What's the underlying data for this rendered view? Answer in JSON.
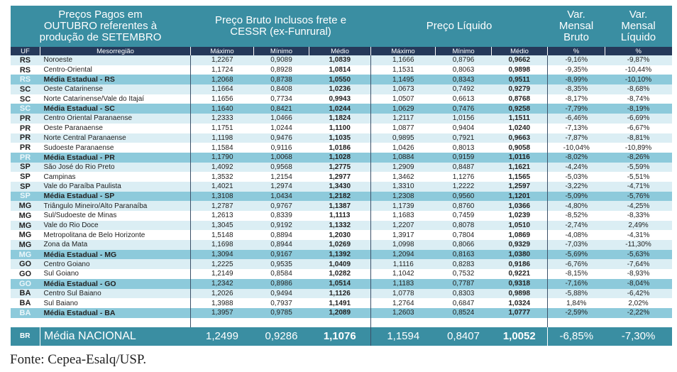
{
  "header": {
    "title": "Preços Pagos em OUTUBRO referentes à produção de SETEMBRO",
    "bruto": "Preço Bruto Inclusos frete e CESSR (ex-Funrural)",
    "liquido": "Preço Líquido",
    "var_bruto": "Var. Mensal Bruto",
    "var_liquido": "Var. Mensal Líquido"
  },
  "subheader": [
    "UF",
    "Mesorregião",
    "Máximo",
    "Mínimo",
    "Médio",
    "Máximo",
    "Mínimo",
    "Médio",
    "%",
    "%"
  ],
  "colors": {
    "header": "#3a8ea2",
    "subheader": "#25395a",
    "state_row": "#8dcadb",
    "light_row": "#dbeef4"
  },
  "rows": [
    {
      "type": "region",
      "uf": "RS",
      "region": "Noroeste",
      "bruto": [
        "1,2267",
        "0,9089",
        "1,0839"
      ],
      "liquido": [
        "1,1666",
        "0,8796",
        "0,9662"
      ],
      "var_bruto": "-9,16%",
      "var_liquido": "-9,87%"
    },
    {
      "type": "region",
      "uf": "RS",
      "region": "Centro-Oriental",
      "bruto": [
        "1,1724",
        "0,8928",
        "1,0814"
      ],
      "liquido": [
        "1,1531",
        "0,8063",
        "0,9898"
      ],
      "var_bruto": "-9,35%",
      "var_liquido": "-10,44%"
    },
    {
      "type": "state",
      "uf": "RS",
      "region": "Média Estadual - RS",
      "bruto": [
        "1,2068",
        "0,8738",
        "1,0550"
      ],
      "liquido": [
        "1,1495",
        "0,8343",
        "0,9511"
      ],
      "var_bruto": "-8,99%",
      "var_liquido": "-10,10%"
    },
    {
      "type": "region",
      "uf": "SC",
      "region": "Oeste Catarinense",
      "bruto": [
        "1,1664",
        "0,8408",
        "1,0236"
      ],
      "liquido": [
        "1,0673",
        "0,7492",
        "0,9279"
      ],
      "var_bruto": "-8,35%",
      "var_liquido": "-8,68%"
    },
    {
      "type": "region",
      "uf": "SC",
      "region": "Norte Catarinense/Vale do Itajaí",
      "bruto": [
        "1,1656",
        "0,7734",
        "0,9943"
      ],
      "liquido": [
        "1,0507",
        "0,6613",
        "0,8768"
      ],
      "var_bruto": "-8,17%",
      "var_liquido": "-8,74%"
    },
    {
      "type": "state",
      "uf": "SC",
      "region": "Média Estadual - SC",
      "bruto": [
        "1,1640",
        "0,8421",
        "1,0244"
      ],
      "liquido": [
        "1,0629",
        "0,7476",
        "0,9258"
      ],
      "var_bruto": "-7,79%",
      "var_liquido": "-8,19%"
    },
    {
      "type": "region",
      "uf": "PR",
      "region": "Centro Oriental Paranaense",
      "bruto": [
        "1,2333",
        "1,0466",
        "1,1824"
      ],
      "liquido": [
        "1,2117",
        "1,0156",
        "1,1511"
      ],
      "var_bruto": "-6,46%",
      "var_liquido": "-6,69%"
    },
    {
      "type": "region",
      "uf": "PR",
      "region": "Oeste Paranaense",
      "bruto": [
        "1,1751",
        "1,0244",
        "1,1100"
      ],
      "liquido": [
        "1,0877",
        "0,9404",
        "1,0240"
      ],
      "var_bruto": "-7,13%",
      "var_liquido": "-6,67%"
    },
    {
      "type": "region",
      "uf": "PR",
      "region": "Norte Central Paranaense",
      "bruto": [
        "1,1198",
        "0,9476",
        "1,1035"
      ],
      "liquido": [
        "0,9895",
        "0,7921",
        "0,9663"
      ],
      "var_bruto": "-7,87%",
      "var_liquido": "-8,81%"
    },
    {
      "type": "region",
      "uf": "PR",
      "region": "Sudoeste Paranaense",
      "bruto": [
        "1,1584",
        "0,9116",
        "1,0186"
      ],
      "liquido": [
        "1,0426",
        "0,8013",
        "0,9058"
      ],
      "var_bruto": "-10,04%",
      "var_liquido": "-10,89%"
    },
    {
      "type": "state",
      "uf": "PR",
      "region": "Média Estadual - PR",
      "bruto": [
        "1,1790",
        "1,0068",
        "1,1028"
      ],
      "liquido": [
        "1,0884",
        "0,9159",
        "1,0116"
      ],
      "var_bruto": "-8,02%",
      "var_liquido": "-8,26%"
    },
    {
      "type": "region",
      "uf": "SP",
      "region": "São José do Rio Preto",
      "bruto": [
        "1,4092",
        "0,9568",
        "1,2775"
      ],
      "liquido": [
        "1,2909",
        "0,8487",
        "1,1621"
      ],
      "var_bruto": "-4,24%",
      "var_liquido": "-5,59%"
    },
    {
      "type": "region",
      "uf": "SP",
      "region": "Campinas",
      "bruto": [
        "1,3532",
        "1,2154",
        "1,2977"
      ],
      "liquido": [
        "1,3462",
        "1,1276",
        "1,1565"
      ],
      "var_bruto": "-5,03%",
      "var_liquido": "-5,51%"
    },
    {
      "type": "region",
      "uf": "SP",
      "region": "Vale do Paraíba Paulista",
      "bruto": [
        "1,4021",
        "1,2974",
        "1,3430"
      ],
      "liquido": [
        "1,3310",
        "1,2222",
        "1,2597"
      ],
      "var_bruto": "-3,22%",
      "var_liquido": "-4,71%"
    },
    {
      "type": "state",
      "uf": "SP",
      "region": "Média Estadual - SP",
      "bruto": [
        "1,3108",
        "1,0434",
        "1,2182"
      ],
      "liquido": [
        "1,2308",
        "0,9560",
        "1,1201"
      ],
      "var_bruto": "-5,09%",
      "var_liquido": "-5,76%"
    },
    {
      "type": "region",
      "uf": "MG",
      "region": "Triângulo Mineiro/Alto Paranaíba",
      "bruto": [
        "1,2787",
        "0,9767",
        "1,1387"
      ],
      "liquido": [
        "1,1739",
        "0,8760",
        "1,0366"
      ],
      "var_bruto": "-4,80%",
      "var_liquido": "-4,25%"
    },
    {
      "type": "region",
      "uf": "MG",
      "region": "Sul/Sudoeste de Minas",
      "bruto": [
        "1,2613",
        "0,8339",
        "1,1113"
      ],
      "liquido": [
        "1,1683",
        "0,7459",
        "1,0239"
      ],
      "var_bruto": "-8,52%",
      "var_liquido": "-8,33%"
    },
    {
      "type": "region",
      "uf": "MG",
      "region": "Vale do Rio Doce",
      "bruto": [
        "1,3045",
        "0,9192",
        "1,1332"
      ],
      "liquido": [
        "1,2207",
        "0,8078",
        "1,0510"
      ],
      "var_bruto": "-2,74%",
      "var_liquido": "2,49%"
    },
    {
      "type": "region",
      "uf": "MG",
      "region": "Metropolitana de Belo Horizonte",
      "bruto": [
        "1,5148",
        "0,8894",
        "1,2030"
      ],
      "liquido": [
        "1,3917",
        "0,7804",
        "1,0869"
      ],
      "var_bruto": "-4,08%",
      "var_liquido": "-4,31%"
    },
    {
      "type": "region",
      "uf": "MG",
      "region": "Zona da Mata",
      "bruto": [
        "1,1698",
        "0,8944",
        "1,0269"
      ],
      "liquido": [
        "1,0998",
        "0,8066",
        "0,9329"
      ],
      "var_bruto": "-7,03%",
      "var_liquido": "-11,30%"
    },
    {
      "type": "state",
      "uf": "MG",
      "region": "Média Estadual - MG",
      "bruto": [
        "1,3094",
        "0,9167",
        "1,1392"
      ],
      "liquido": [
        "1,2094",
        "0,8163",
        "1,0380"
      ],
      "var_bruto": "-5,69%",
      "var_liquido": "-5,63%"
    },
    {
      "type": "region",
      "uf": "GO",
      "region": "Centro Goiano",
      "bruto": [
        "1,2225",
        "0,9535",
        "1,0409"
      ],
      "liquido": [
        "1,1116",
        "0,8283",
        "0,9186"
      ],
      "var_bruto": "-6,76%",
      "var_liquido": "-7,64%"
    },
    {
      "type": "region",
      "uf": "GO",
      "region": "Sul Goiano",
      "bruto": [
        "1,2149",
        "0,8584",
        "1,0282"
      ],
      "liquido": [
        "1,1042",
        "0,7532",
        "0,9221"
      ],
      "var_bruto": "-8,15%",
      "var_liquido": "-8,93%"
    },
    {
      "type": "state",
      "uf": "GO",
      "region": "Média Estadual - GO",
      "bruto": [
        "1,2342",
        "0,8986",
        "1,0514"
      ],
      "liquido": [
        "1,1183",
        "0,7787",
        "0,9318"
      ],
      "var_bruto": "-7,16%",
      "var_liquido": "-8,04%"
    },
    {
      "type": "region",
      "uf": "BA",
      "region": "Centro Sul Baiano",
      "bruto": [
        "1,2026",
        "0,9494",
        "1,1126"
      ],
      "liquido": [
        "1,0778",
        "0,8303",
        "0,9898"
      ],
      "var_bruto": "-5,88%",
      "var_liquido": "-6,42%"
    },
    {
      "type": "region",
      "uf": "BA",
      "region": "Sul Baiano",
      "bruto": [
        "1,3988",
        "0,7937",
        "1,1491"
      ],
      "liquido": [
        "1,2764",
        "0,6847",
        "1,0324"
      ],
      "var_bruto": "1,84%",
      "var_liquido": "2,02%"
    },
    {
      "type": "state",
      "uf": "BA",
      "region": "Média Estadual - BA",
      "bruto": [
        "1,3957",
        "0,9785",
        "1,2089"
      ],
      "liquido": [
        "1,2603",
        "0,8524",
        "1,0777"
      ],
      "var_bruto": "-2,59%",
      "var_liquido": "-2,22%"
    }
  ],
  "national": {
    "uf": "BR",
    "region": "Média NACIONAL",
    "bruto": [
      "1,2499",
      "0,9286",
      "1,1076"
    ],
    "liquido": [
      "1,1594",
      "0,8407",
      "1,0052"
    ],
    "var_bruto": "-6,85%",
    "var_liquido": "-7,30%"
  },
  "source": "Fonte: Cepea-Esalq/USP."
}
